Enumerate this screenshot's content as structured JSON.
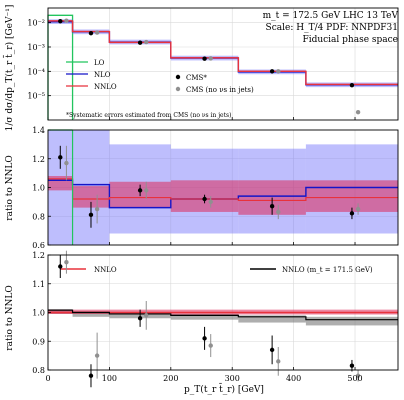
{
  "chart_data": [
    {
      "type": "line",
      "panel": "top",
      "annotation_lines": [
        "m_t = 172.5 GeV LHC 13 TeV",
        "Scale: H_T/4 PDF: NNPDF31",
        "Fiducial phase space"
      ],
      "footnote": "*Systematic errors estimated from CMS (no νs in jets)",
      "ylabel": "1/σ dσ/dp_T(t_r t̄_r) [GeV⁻¹]",
      "yscale": "log",
      "ylim": [
        1e-06,
        0.04
      ],
      "yticks": [
        "10⁻²",
        "10⁻³",
        "10⁻⁴",
        "10⁻⁵"
      ],
      "xlim": [
        0,
        570
      ],
      "bin_edges": [
        0,
        40,
        100,
        200,
        310,
        420,
        570
      ],
      "legend": [
        {
          "name": "LO",
          "color": "#22c55e"
        },
        {
          "name": "NLO",
          "color": "#1515c8"
        },
        {
          "name": "NNLO",
          "color": "#e8323c"
        },
        {
          "name": "CMS*",
          "color": "#000000"
        },
        {
          "name": "CMS (no νs in jets)",
          "color": "#909090"
        }
      ],
      "series": [
        {
          "name": "LO",
          "values": [
            0.02,
            0.0,
            0.0,
            0.0,
            0.0,
            0.0
          ]
        },
        {
          "name": "NLO",
          "values": [
            0.011,
            0.0042,
            0.0016,
            0.00035,
            9.5e-05,
            2.8e-05
          ]
        },
        {
          "name": "NNLO",
          "values": [
            0.0118,
            0.0043,
            0.00155,
            0.00036,
            0.0001,
            2.9e-05
          ]
        }
      ],
      "points_cms": [
        {
          "x": 20,
          "y": 0.0115
        },
        {
          "x": 70,
          "y": 0.0037
        },
        {
          "x": 150,
          "y": 0.0015
        },
        {
          "x": 255,
          "y": 0.00033
        },
        {
          "x": 365,
          "y": 0.0001
        },
        {
          "x": 495,
          "y": 2.7e-05
        }
      ],
      "points_cms_nonu": [
        {
          "x": 30,
          "y": 0.012
        },
        {
          "x": 80,
          "y": 0.0039
        },
        {
          "x": 160,
          "y": 0.0016
        },
        {
          "x": 265,
          "y": 0.00034
        },
        {
          "x": 375,
          "y": 0.0001
        },
        {
          "x": 505,
          "y": 2.1e-06
        }
      ]
    },
    {
      "type": "area",
      "panel": "middle",
      "ylabel": "ratio to NNLO",
      "ylim": [
        0.6,
        1.4
      ],
      "yticks": [
        "0.6",
        "0.8",
        "1.0",
        "1.2",
        "1.4"
      ],
      "xlim": [
        0,
        570
      ],
      "bin_edges": [
        0,
        40,
        100,
        200,
        310,
        420,
        570
      ],
      "nlo_band": [
        [
          0.6,
          1.4
        ],
        [
          0.6,
          1.4
        ],
        [
          0.68,
          1.3
        ],
        [
          0.68,
          1.27
        ],
        [
          0.68,
          1.27
        ],
        [
          0.68,
          1.3
        ]
      ],
      "nlo_line": [
        1.05,
        1.02,
        0.86,
        0.92,
        0.94,
        1.0
      ],
      "nnlo_band": [
        [
          0.98,
          1.08
        ],
        [
          0.86,
          1.01
        ],
        [
          0.86,
          1.04
        ],
        [
          0.83,
          1.05
        ],
        [
          0.81,
          1.05
        ],
        [
          0.83,
          1.05
        ]
      ],
      "nnlo_line": [
        1.06,
        0.92,
        0.93,
        0.92,
        0.91,
        0.93
      ],
      "lo_line": [
        0.6,
        0.6,
        0.6,
        0.6,
        0.6,
        0.6
      ],
      "points_cms": [
        {
          "x": 20,
          "y": 1.21,
          "err": 0.08
        },
        {
          "x": 70,
          "y": 0.81,
          "err": 0.09
        },
        {
          "x": 150,
          "y": 0.98,
          "err": 0.04
        },
        {
          "x": 255,
          "y": 0.92,
          "err": 0.03
        },
        {
          "x": 365,
          "y": 0.87,
          "err": 0.06
        },
        {
          "x": 495,
          "y": 0.82,
          "err": 0.04
        }
      ],
      "points_cms_nonu": [
        {
          "x": 30,
          "y": 1.17,
          "err": 0.12
        },
        {
          "x": 80,
          "y": 0.85,
          "err": 0.1
        },
        {
          "x": 160,
          "y": 0.98,
          "err": 0.06
        },
        {
          "x": 265,
          "y": 0.9,
          "err": 0.04
        },
        {
          "x": 375,
          "y": 0.83,
          "err": 0.05
        },
        {
          "x": 505,
          "y": 0.85,
          "err": 0.04
        }
      ]
    },
    {
      "type": "line",
      "panel": "bottom",
      "ylabel": "ratio to NNLO",
      "xlabel": "p_T(t_r t̄_r) [GeV]",
      "ylim": [
        0.8,
        1.2
      ],
      "yticks": [
        "0.8",
        "0.9",
        "1.0",
        "1.1",
        "1.2"
      ],
      "xlim": [
        0,
        570
      ],
      "xticks": [
        "0",
        "100",
        "200",
        "300",
        "400",
        "500"
      ],
      "legend": [
        {
          "name": "NNLO",
          "color": "#e8323c"
        },
        {
          "name": "NNLO (m_t = 171.5 GeV)",
          "color": "#000000"
        }
      ],
      "bin_edges": [
        0,
        40,
        100,
        200,
        310,
        420,
        570
      ],
      "nnlo_band": [
        [
          0.995,
          1.01
        ],
        [
          0.995,
          1.01
        ],
        [
          0.993,
          1.01
        ],
        [
          0.993,
          1.01
        ],
        [
          0.993,
          1.01
        ],
        [
          0.993,
          1.01
        ]
      ],
      "mt1715_line": [
        1.008,
        1.0,
        0.995,
        0.99,
        0.985,
        0.975
      ],
      "mt1715_band": [
        [
          0.995,
          1.012
        ],
        [
          0.985,
          1.005
        ],
        [
          0.98,
          1.0
        ],
        [
          0.975,
          0.995
        ],
        [
          0.965,
          0.99
        ],
        [
          0.955,
          0.985
        ]
      ],
      "points_cms": [
        {
          "x": 20,
          "y": 1.16,
          "err": 0.04
        },
        {
          "x": 70,
          "y": 0.78,
          "err": 0.04
        },
        {
          "x": 150,
          "y": 0.98,
          "err": 0.03
        },
        {
          "x": 255,
          "y": 0.91,
          "err": 0.04
        },
        {
          "x": 365,
          "y": 0.87,
          "err": 0.05
        },
        {
          "x": 495,
          "y": 0.815,
          "err": 0.02
        }
      ],
      "points_cms_nonu": [
        {
          "x": 30,
          "y": 1.175,
          "err": 0.04
        },
        {
          "x": 80,
          "y": 0.85,
          "err": 0.08
        },
        {
          "x": 160,
          "y": 0.99,
          "err": 0.05
        },
        {
          "x": 265,
          "y": 0.885,
          "err": 0.04
        },
        {
          "x": 375,
          "y": 0.83,
          "err": 0.05
        },
        {
          "x": 505,
          "y": 0.78,
          "err": 0.02
        }
      ]
    }
  ]
}
